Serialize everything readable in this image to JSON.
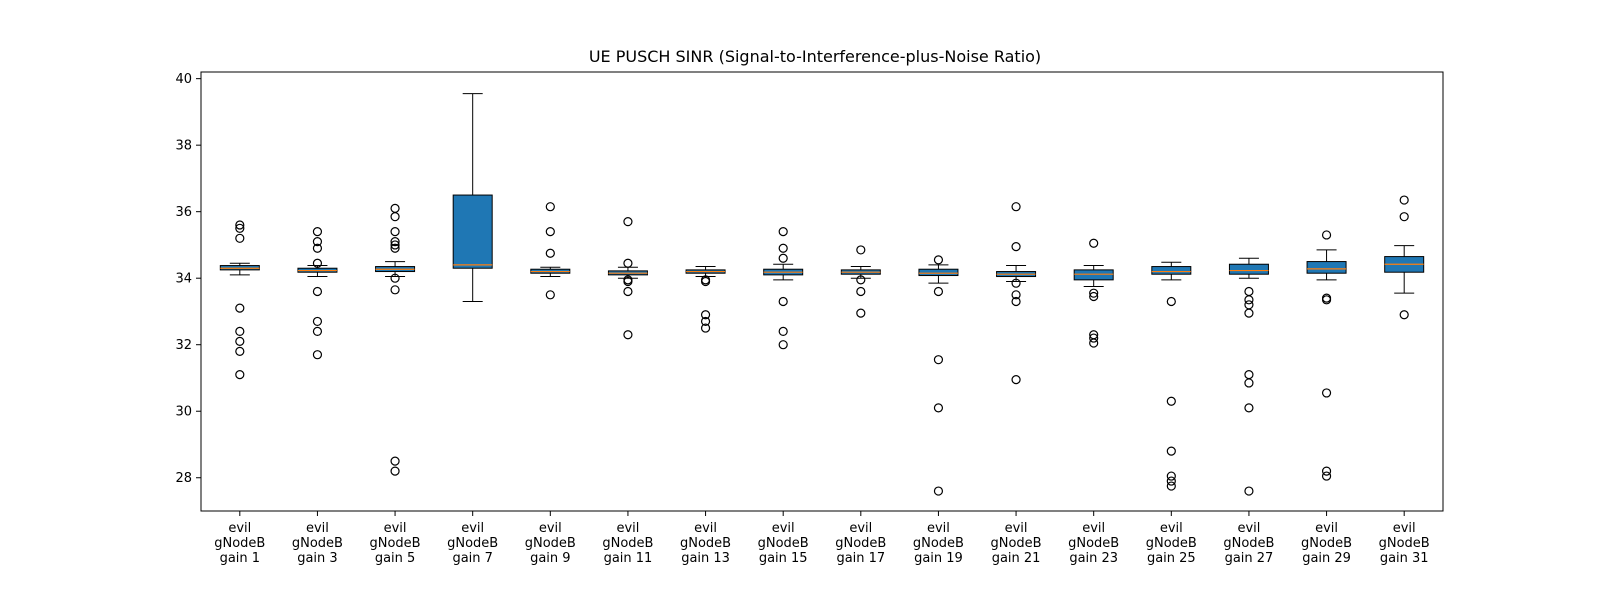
{
  "chart_data": {
    "type": "box",
    "title": "UE PUSCH SINR (Signal-to-Interference-plus-Noise Ratio)",
    "xlabel": "",
    "ylabel": "",
    "ylim": [
      27,
      40.2
    ],
    "yticks": [
      28,
      30,
      32,
      34,
      36,
      38,
      40
    ],
    "grid": false,
    "legend": "none",
    "colors": {
      "box_fill": "#1f77b4",
      "median": "#ff7f0e",
      "edge": "#000000"
    },
    "categories": [
      [
        "evil",
        "gNodeB",
        "gain 1"
      ],
      [
        "evil",
        "gNodeB",
        "gain 3"
      ],
      [
        "evil",
        "gNodeB",
        "gain 5"
      ],
      [
        "evil",
        "gNodeB",
        "gain 7"
      ],
      [
        "evil",
        "gNodeB",
        "gain 9"
      ],
      [
        "evil",
        "gNodeB",
        "gain 11"
      ],
      [
        "evil",
        "gNodeB",
        "gain 13"
      ],
      [
        "evil",
        "gNodeB",
        "gain 15"
      ],
      [
        "evil",
        "gNodeB",
        "gain 17"
      ],
      [
        "evil",
        "gNodeB",
        "gain 19"
      ],
      [
        "evil",
        "gNodeB",
        "gain 21"
      ],
      [
        "evil",
        "gNodeB",
        "gain 23"
      ],
      [
        "evil",
        "gNodeB",
        "gain 25"
      ],
      [
        "evil",
        "gNodeB",
        "gain 27"
      ],
      [
        "evil",
        "gNodeB",
        "gain 29"
      ],
      [
        "evil",
        "gNodeB",
        "gain 31"
      ]
    ],
    "boxes": [
      {
        "whisker_low": 34.1,
        "q1": 34.25,
        "median": 34.3,
        "q3": 34.38,
        "whisker_high": 34.45,
        "outliers": [
          35.6,
          35.5,
          35.2,
          33.1,
          32.4,
          32.1,
          31.8,
          31.1
        ]
      },
      {
        "whisker_low": 34.05,
        "q1": 34.18,
        "median": 34.23,
        "q3": 34.3,
        "whisker_high": 34.38,
        "outliers": [
          35.4,
          35.1,
          34.9,
          34.45,
          33.6,
          32.7,
          32.4,
          31.7
        ]
      },
      {
        "whisker_low": 34.05,
        "q1": 34.2,
        "median": 34.27,
        "q3": 34.35,
        "whisker_high": 34.5,
        "outliers": [
          36.1,
          35.85,
          35.4,
          35.1,
          35.0,
          34.9,
          34.0,
          33.65,
          28.5,
          28.2
        ]
      },
      {
        "whisker_low": 33.3,
        "q1": 34.3,
        "median": 34.4,
        "q3": 36.5,
        "whisker_high": 39.55,
        "outliers": []
      },
      {
        "whisker_low": 34.05,
        "q1": 34.15,
        "median": 34.2,
        "q3": 34.27,
        "whisker_high": 34.33,
        "outliers": [
          36.15,
          35.4,
          34.75,
          33.5
        ]
      },
      {
        "whisker_low": 34.0,
        "q1": 34.1,
        "median": 34.15,
        "q3": 34.22,
        "whisker_high": 34.33,
        "outliers": [
          35.7,
          34.45,
          33.95,
          33.9,
          33.6,
          32.3
        ]
      },
      {
        "whisker_low": 34.05,
        "q1": 34.15,
        "median": 34.2,
        "q3": 34.25,
        "whisker_high": 34.35,
        "outliers": [
          33.95,
          33.9,
          32.9,
          32.7,
          32.5
        ]
      },
      {
        "whisker_low": 33.95,
        "q1": 34.1,
        "median": 34.18,
        "q3": 34.27,
        "whisker_high": 34.42,
        "outliers": [
          35.4,
          34.9,
          34.6,
          33.3,
          32.4,
          32.0
        ]
      },
      {
        "whisker_low": 34.0,
        "q1": 34.12,
        "median": 34.18,
        "q3": 34.25,
        "whisker_high": 34.35,
        "outliers": [
          34.85,
          33.95,
          33.6,
          32.95
        ]
      },
      {
        "whisker_low": 33.85,
        "q1": 34.08,
        "median": 34.15,
        "q3": 34.27,
        "whisker_high": 34.4,
        "outliers": [
          34.55,
          33.6,
          31.55,
          30.1,
          27.6
        ]
      },
      {
        "whisker_low": 33.9,
        "q1": 34.05,
        "median": 34.12,
        "q3": 34.2,
        "whisker_high": 34.38,
        "outliers": [
          36.15,
          34.95,
          33.85,
          33.5,
          33.3,
          30.95
        ]
      },
      {
        "whisker_low": 33.75,
        "q1": 33.95,
        "median": 34.12,
        "q3": 34.25,
        "whisker_high": 34.38,
        "outliers": [
          35.05,
          33.55,
          33.45,
          32.3,
          32.2,
          32.05
        ]
      },
      {
        "whisker_low": 33.95,
        "q1": 34.12,
        "median": 34.2,
        "q3": 34.35,
        "whisker_high": 34.48,
        "outliers": [
          33.3,
          30.3,
          28.8,
          28.05,
          27.9,
          27.75
        ]
      },
      {
        "whisker_low": 34.0,
        "q1": 34.12,
        "median": 34.23,
        "q3": 34.42,
        "whisker_high": 34.6,
        "outliers": [
          33.6,
          33.35,
          33.2,
          32.95,
          31.1,
          30.85,
          30.1,
          27.6
        ]
      },
      {
        "whisker_low": 33.95,
        "q1": 34.15,
        "median": 34.28,
        "q3": 34.5,
        "whisker_high": 34.85,
        "outliers": [
          35.3,
          33.4,
          33.35,
          30.55,
          28.2,
          28.05
        ]
      },
      {
        "whisker_low": 33.55,
        "q1": 34.18,
        "median": 34.42,
        "q3": 34.65,
        "whisker_high": 34.98,
        "outliers": [
          36.35,
          35.85,
          32.9
        ]
      }
    ]
  }
}
